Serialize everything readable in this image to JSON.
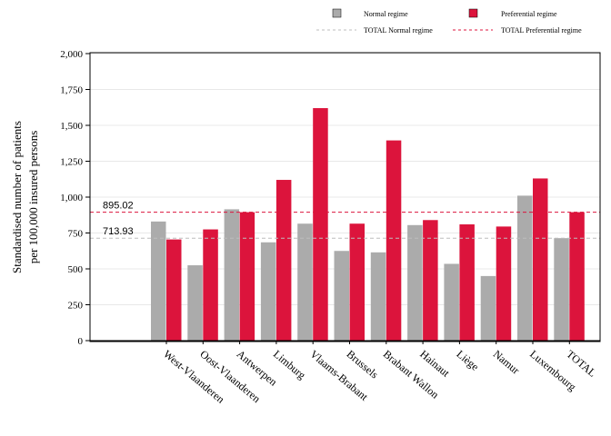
{
  "colors": {
    "normal": "#ababab",
    "preferential": "#dc143c",
    "normal_ref": "#bdbdbd",
    "preferential_ref": "#dc143c",
    "grid": "#e8e8e8"
  },
  "legend": {
    "normal_label": "Normal regime",
    "preferential_label": "Preferential regime",
    "total_normal_label": "TOTAL Normal regime",
    "total_preferential_label": "TOTAL Preferential regime"
  },
  "chart_data": {
    "type": "bar",
    "ylabel_line1": "Standardised number of patients",
    "ylabel_line2": "per 100,000 insured persons",
    "ylim": [
      0,
      2000
    ],
    "yticks": [
      0,
      250,
      500,
      750,
      1000,
      1250,
      1500,
      1750,
      2000
    ],
    "ytick_labels": [
      "0",
      "250",
      "500",
      "750",
      "1,000",
      "1,250",
      "1,500",
      "1,750",
      "2,000"
    ],
    "grid": true,
    "legend_position": "top-right",
    "categories": [
      "West-Vlaanderen",
      "Oost-Vlaanderen",
      "Antwerpen",
      "Limburg",
      "Vlaams-Brabant",
      "Brussels",
      "Brabant Wallon",
      "Hainaut",
      "Liège",
      "Namur",
      "Luxembourg",
      "TOTAL"
    ],
    "series": [
      {
        "name": "Normal regime",
        "values": [
          830,
          525,
          915,
          685,
          815,
          625,
          615,
          805,
          535,
          450,
          1010,
          714
        ]
      },
      {
        "name": "Preferential regime",
        "values": [
          705,
          775,
          895,
          1120,
          1620,
          815,
          1395,
          840,
          810,
          795,
          1130,
          895
        ]
      }
    ],
    "reference_lines": [
      {
        "name": "TOTAL Normal regime",
        "value": 713.93,
        "label": "713.93"
      },
      {
        "name": "TOTAL Preferential regime",
        "value": 895.02,
        "label": "895.02"
      }
    ]
  }
}
